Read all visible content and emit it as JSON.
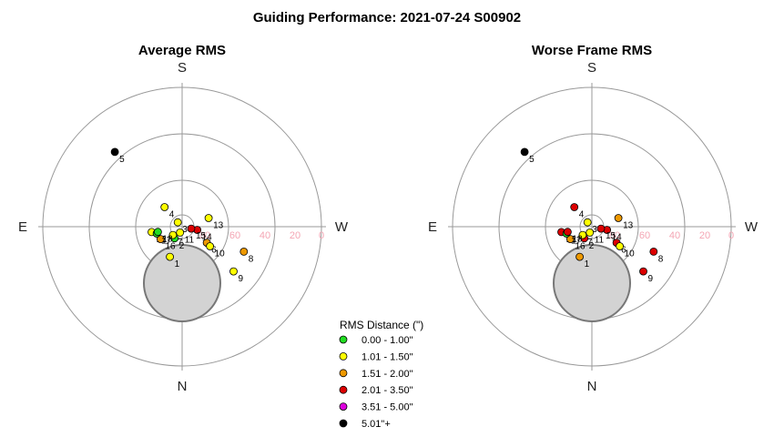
{
  "title": "Guiding Performance: 2021-07-24 S00902",
  "chart_data": [
    {
      "type": "scatter",
      "coordinate_system": "polar",
      "title": "Average RMS",
      "compass": {
        "top": "S",
        "bottom": "N",
        "left": "E",
        "right": "W"
      },
      "radial_axis": {
        "ticks": [
          "80",
          "60",
          "40",
          "20",
          "0"
        ],
        "direction": "altitude, 90 at center"
      },
      "points": [
        {
          "label": "1",
          "az": 22,
          "alt": 69,
          "category": 1
        },
        {
          "label": "2",
          "az": 33,
          "alt": 81,
          "category": 0
        },
        {
          "label": "3",
          "az": 135,
          "alt": 86,
          "category": 1
        },
        {
          "label": "4",
          "az": 138,
          "alt": 73,
          "category": 1
        },
        {
          "label": "5",
          "az": 138,
          "alt": 25,
          "category": 5
        },
        {
          "label": "6",
          "az": 303,
          "alt": 71,
          "category": 2
        },
        {
          "label": "7",
          "az": 48,
          "alt": 82,
          "category": 1
        },
        {
          "label": "8",
          "az": 292,
          "alt": 47,
          "category": 2
        },
        {
          "label": "9",
          "az": 311,
          "alt": 46,
          "category": 1
        },
        {
          "label": "10",
          "az": 305,
          "alt": 68,
          "category": 1
        },
        {
          "label": "11",
          "az": 20,
          "alt": 86,
          "category": 1
        },
        {
          "label": "12",
          "az": 80,
          "alt": 70,
          "category": 1
        },
        {
          "label": "13",
          "az": 252,
          "alt": 72,
          "category": 1
        },
        {
          "label": "14",
          "az": 282,
          "alt": 80,
          "category": 3
        },
        {
          "label": "15",
          "az": 282,
          "alt": 84,
          "category": 3
        },
        {
          "label": "16",
          "az": 60,
          "alt": 74,
          "category": 2
        },
        {
          "label": "17",
          "az": 75,
          "alt": 73,
          "category": 0
        },
        {
          "label": "18",
          "az": 78,
          "alt": 74,
          "category": 0
        }
      ]
    },
    {
      "type": "scatter",
      "coordinate_system": "polar",
      "title": "Worse Frame RMS",
      "compass": {
        "top": "S",
        "bottom": "N",
        "left": "E",
        "right": "W"
      },
      "radial_axis": {
        "ticks": [
          "80",
          "60",
          "40",
          "20",
          "0"
        ],
        "direction": "altitude, 90 at center"
      },
      "points": [
        {
          "label": "1",
          "az": 22,
          "alt": 69,
          "category": 2
        },
        {
          "label": "2",
          "az": 33,
          "alt": 81,
          "category": 3
        },
        {
          "label": "3",
          "az": 135,
          "alt": 86,
          "category": 1
        },
        {
          "label": "4",
          "az": 138,
          "alt": 73,
          "category": 3
        },
        {
          "label": "5",
          "az": 138,
          "alt": 25,
          "category": 5
        },
        {
          "label": "6",
          "az": 303,
          "alt": 71,
          "category": 3
        },
        {
          "label": "7",
          "az": 48,
          "alt": 82,
          "category": 1
        },
        {
          "label": "8",
          "az": 292,
          "alt": 47,
          "category": 3
        },
        {
          "label": "9",
          "az": 311,
          "alt": 46,
          "category": 3
        },
        {
          "label": "10",
          "az": 305,
          "alt": 68,
          "category": 1
        },
        {
          "label": "11",
          "az": 20,
          "alt": 86,
          "category": 1
        },
        {
          "label": "12",
          "az": 80,
          "alt": 70,
          "category": 3
        },
        {
          "label": "13",
          "az": 252,
          "alt": 72,
          "category": 2
        },
        {
          "label": "14",
          "az": 282,
          "alt": 80,
          "category": 3
        },
        {
          "label": "15",
          "az": 282,
          "alt": 84,
          "category": 3
        },
        {
          "label": "16",
          "az": 60,
          "alt": 74,
          "category": 2
        },
        {
          "label": "17",
          "az": 75,
          "alt": 73,
          "category": 0
        },
        {
          "label": "18",
          "az": 78,
          "alt": 74,
          "category": 3
        }
      ]
    }
  ],
  "legend": {
    "title": "RMS Distance (\")",
    "items": [
      {
        "label": "0.00 - 1.00\"",
        "color": "#22dd22"
      },
      {
        "label": "1.01 - 1.50\"",
        "color": "#ffff00"
      },
      {
        "label": "1.51 - 2.00\"",
        "color": "#ee9900"
      },
      {
        "label": "2.01 - 3.50\"",
        "color": "#dd0000"
      },
      {
        "label": "3.51 - 5.00\"",
        "color": "#dd00dd"
      },
      {
        "label": "5.01\"+",
        "color": "#000000"
      }
    ]
  },
  "colors": {
    "grid": "#999999",
    "ring_tick": "#f4a6b4",
    "obstruction_fill": "#d3d3d3",
    "obstruction_stroke": "#777777"
  }
}
